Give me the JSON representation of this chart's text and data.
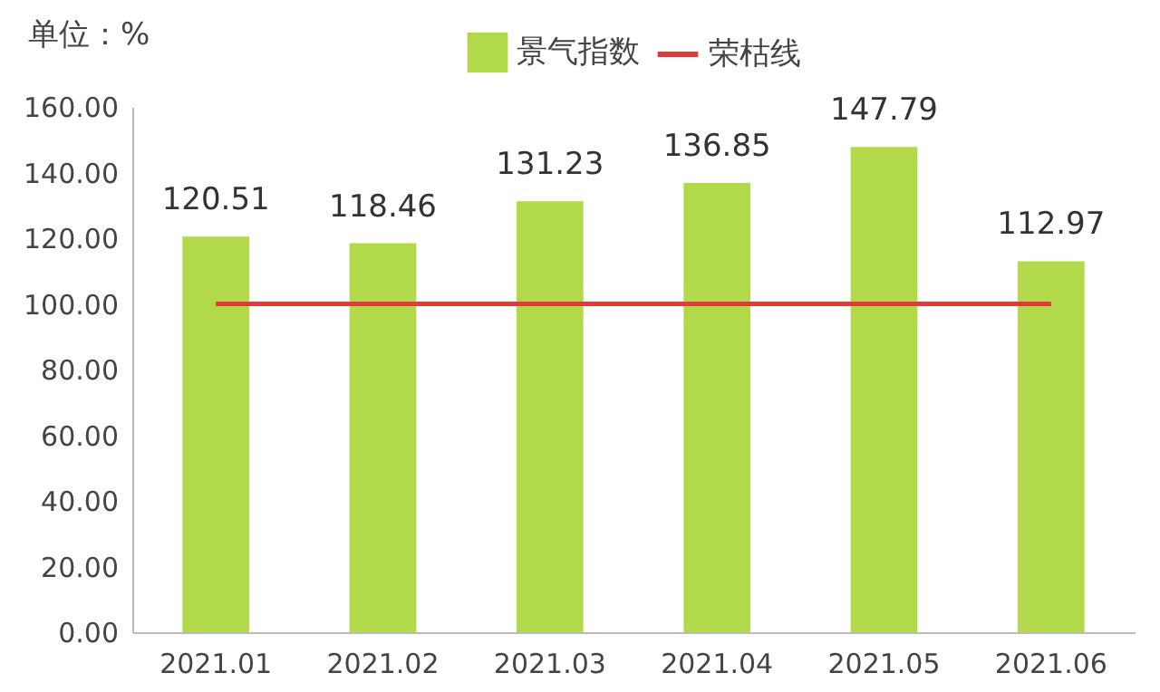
{
  "chart_data": {
    "type": "bar",
    "ylabel": "单位：%",
    "categories": [
      "2021.01",
      "2021.02",
      "2021.03",
      "2021.04",
      "2021.05",
      "2021.06"
    ],
    "series": [
      {
        "name": "景气指数",
        "color": "#b2d94a",
        "values": [
          120.51,
          118.46,
          131.23,
          136.85,
          147.79,
          112.97
        ],
        "value_labels": [
          "120.51",
          "118.46",
          "131.23",
          "136.85",
          "147.79",
          "112.97"
        ]
      },
      {
        "name": "荣枯线",
        "type": "line",
        "color": "#e03a3a",
        "values": [
          100,
          100,
          100,
          100,
          100,
          100
        ]
      }
    ],
    "ylim": [
      0,
      160
    ],
    "yticks": [
      {
        "value": 0,
        "label": "0.00"
      },
      {
        "value": 20,
        "label": "20.00"
      },
      {
        "value": 40,
        "label": "40.00"
      },
      {
        "value": 60,
        "label": "60.00"
      },
      {
        "value": 80,
        "label": "80.00"
      },
      {
        "value": 100,
        "label": "100.00"
      },
      {
        "value": 120,
        "label": "120.00"
      },
      {
        "value": 140,
        "label": "140.00"
      },
      {
        "value": 160,
        "label": "160.00"
      }
    ],
    "grid": false,
    "legend": "top"
  }
}
